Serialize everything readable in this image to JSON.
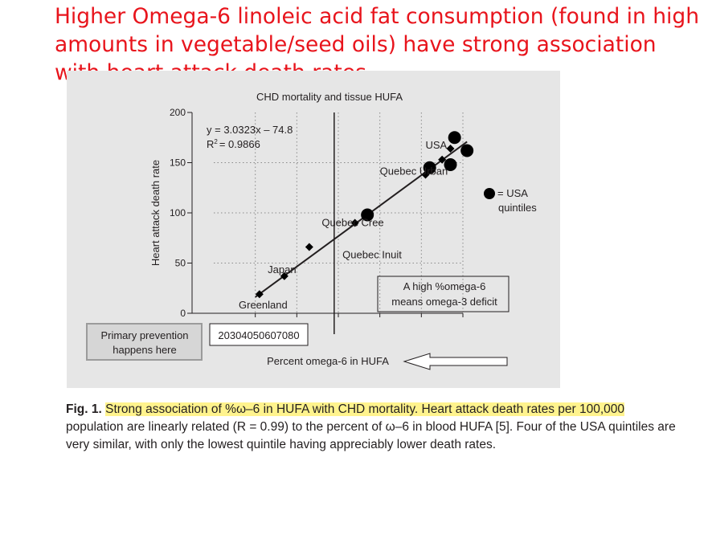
{
  "headline": "Higher Omega-6 linoleic acid fat consumption (found in high amounts in vegetable/seed oils) have strong association with heart attack death rates",
  "caption": {
    "fig_label": "Fig. 1.",
    "highlighted": "Strong association of %ω–6 in HUFA with CHD mortality. Heart attack death rates per 100,000",
    "rest": "population are linearly related (R = 0.99) to the percent of ω–6 in blood HUFA [5]. Four of the USA quintiles are very similar, with only the lowest quintile having appreciably lower death rates."
  },
  "colors": {
    "headline": "#e8141c",
    "panel": "#e6e6e6",
    "highlight": "#fff38d",
    "ink": "#231f20"
  },
  "chart_data": {
    "type": "scatter",
    "title": "CHD mortality and tissue HUFA",
    "xlabel": "Percent omega-6 in HUFA",
    "ylabel": "Heart attack death rate",
    "x_tick_text": "20304050607080",
    "xlim": [
      20,
      80
    ],
    "ylim": [
      0,
      200
    ],
    "yticks": [
      0,
      50,
      100,
      150,
      200
    ],
    "xgrid": [
      30,
      40,
      50,
      60,
      70,
      80
    ],
    "ygrid": [
      50,
      100,
      150
    ],
    "grid": "dotted",
    "regression": {
      "slope": 3.0323,
      "intercept": -74.8,
      "equation": "y = 3.0323x – 74.8",
      "r2_label": "R",
      "r2_value": "= 0.9866",
      "x_range": [
        30,
        81
      ]
    },
    "divider_x": 49,
    "points": [
      {
        "x": 31,
        "y": 19,
        "marker": "diamond"
      },
      {
        "x": 37,
        "y": 37,
        "marker": "diamond"
      },
      {
        "x": 43,
        "y": 66,
        "marker": "diamond"
      },
      {
        "x": 54,
        "y": 90,
        "marker": "diamond"
      },
      {
        "x": 57,
        "y": 100,
        "marker": "diamond"
      },
      {
        "x": 71,
        "y": 138,
        "marker": "diamond"
      },
      {
        "x": 75,
        "y": 153,
        "marker": "diamond"
      },
      {
        "x": 77,
        "y": 164,
        "marker": "diamond"
      },
      {
        "x": 57,
        "y": 98,
        "marker": "circle"
      },
      {
        "x": 72,
        "y": 145,
        "marker": "circle"
      },
      {
        "x": 77,
        "y": 148,
        "marker": "circle"
      },
      {
        "x": 78,
        "y": 175,
        "marker": "circle"
      },
      {
        "x": 81,
        "y": 162,
        "marker": "circle"
      }
    ],
    "point_labels": [
      {
        "text": "Greenland",
        "x": 26,
        "y": 5
      },
      {
        "text": "Japan",
        "x": 33,
        "y": 40
      },
      {
        "text": "Quebec Cree",
        "x": 46,
        "y": 87
      },
      {
        "text": "Quebec Inuit",
        "x": 51,
        "y": 55
      },
      {
        "text": "Quebec Urban",
        "x": 60,
        "y": 138
      },
      {
        "text": "USA",
        "x": 71,
        "y": 164
      }
    ],
    "legend": {
      "marker": "circle",
      "line1": "= USA",
      "line2": "quintiles",
      "placement": "right"
    },
    "deficit_note": {
      "line1": "A high  %omega-6",
      "line2": "means omega-3 deficit"
    },
    "prevention_box": {
      "line1": "Primary prevention",
      "line2": "happens here"
    }
  }
}
